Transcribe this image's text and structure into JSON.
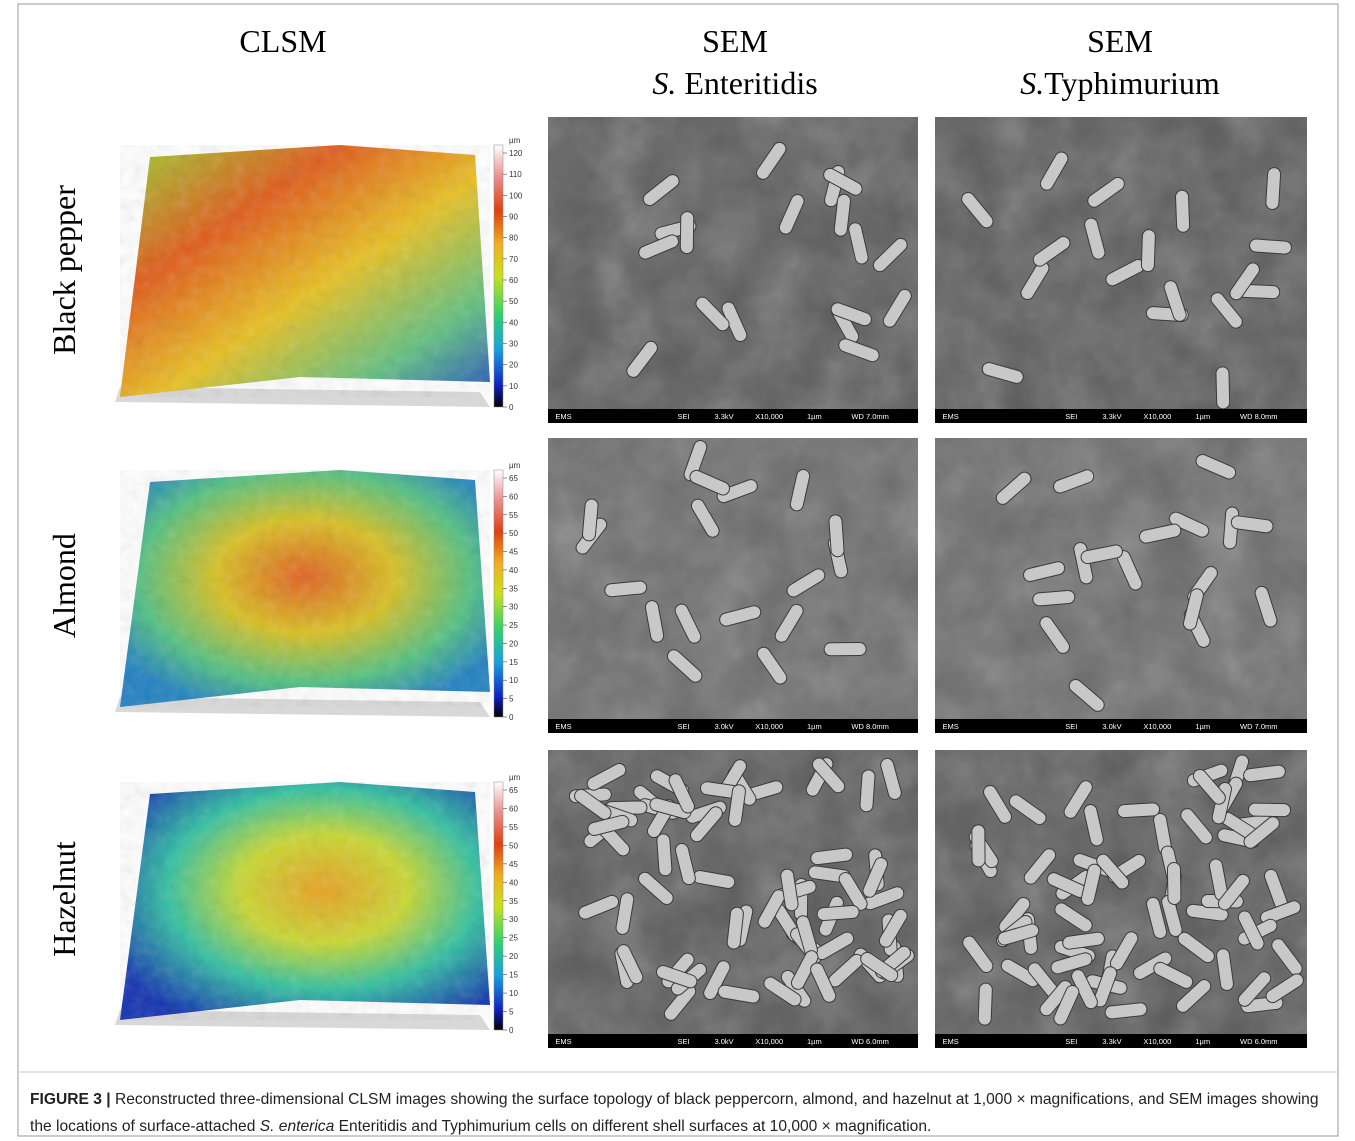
{
  "columns": [
    {
      "title": "CLSM"
    },
    {
      "title": "SEM",
      "subtitle": {
        "italic": "S.",
        "rest": " Enteritidis"
      }
    },
    {
      "title": "SEM",
      "subtitle": {
        "italic": "S.",
        "rest": "Typhimurium"
      }
    }
  ],
  "rows": [
    {
      "label": "Black pepper",
      "colorbar": {
        "unit": "µm",
        "ticks": [
          "0",
          "10",
          "20",
          "30",
          "40",
          "50",
          "60",
          "70",
          "80",
          "90",
          "100",
          "110",
          "120"
        ]
      },
      "sem": [
        {
          "info": [
            "EMS",
            "SEI",
            "3.3kV",
            "X10,000",
            "1µm",
            "WD 7.0mm"
          ]
        },
        {
          "info": [
            "EMS",
            "SEI",
            "3.3kV",
            "X10,000",
            "1µm",
            "WD 8.0mm"
          ]
        }
      ]
    },
    {
      "label": "Almond",
      "colorbar": {
        "unit": "µm",
        "ticks": [
          "0",
          "5",
          "10",
          "15",
          "20",
          "25",
          "30",
          "35",
          "40",
          "45",
          "50",
          "55",
          "60",
          "65"
        ]
      },
      "sem": [
        {
          "info": [
            "EMS",
            "SEI",
            "3.0kV",
            "X10,000",
            "1µm",
            "WD 8.0mm"
          ]
        },
        {
          "info": [
            "EMS",
            "SEI",
            "3.0kV",
            "X10,000",
            "1µm",
            "WD 7.0mm"
          ]
        }
      ]
    },
    {
      "label": "Hazelnut",
      "colorbar": {
        "unit": "µm",
        "ticks": [
          "0",
          "5",
          "10",
          "15",
          "20",
          "25",
          "30",
          "35",
          "40",
          "45",
          "50",
          "55",
          "60",
          "65"
        ]
      },
      "sem": [
        {
          "info": [
            "EMS",
            "SEI",
            "3.0kV",
            "X10,000",
            "1µm",
            "WD 6.0mm"
          ]
        },
        {
          "info": [
            "EMS",
            "SEI",
            "3.3kV",
            "X10,000",
            "1µm",
            "WD 6.0mm"
          ]
        }
      ]
    }
  ],
  "caption": {
    "label": "FIGURE 3 |",
    "text_1": " Reconstructed three-dimensional CLSM images showing the surface topology of black peppercorn, almond, and hazelnut at 1,000 × magnifications, and SEM images showing the locations of surface-attached ",
    "italic": "S. enterica",
    "text_2": " Enteritidis and Typhimurium cells on different shell surfaces at 10,000 × magnification."
  }
}
